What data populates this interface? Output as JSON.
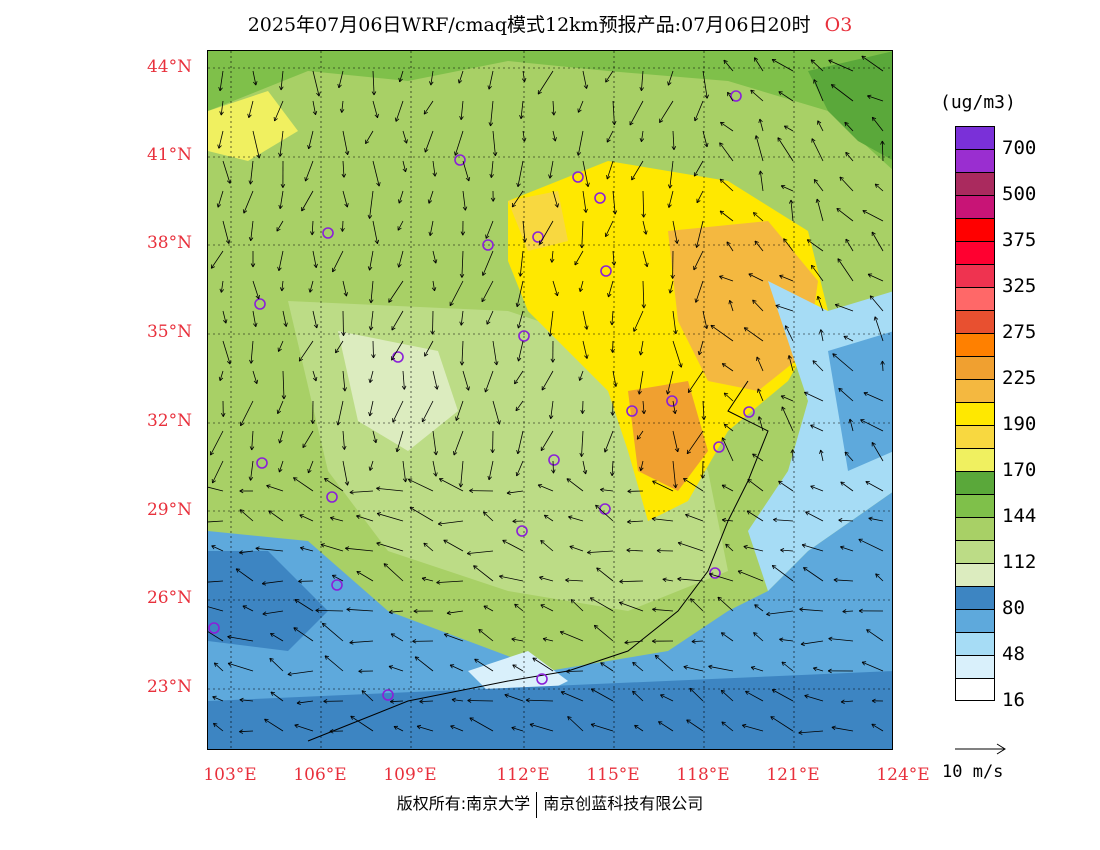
{
  "title": "2025年07月06日WRF/cmaq模式12km预报产品:07月06日20时",
  "species": "O3",
  "latitude_labels": [
    "44°N",
    "41°N",
    "38°N",
    "35°N",
    "32°N",
    "29°N",
    "26°N",
    "23°N"
  ],
  "longitude_labels": [
    "103°E",
    "106°E",
    "109°E",
    "112°E",
    "115°E",
    "118°E",
    "121°E",
    "124°E"
  ],
  "colorbar": {
    "unit": "(ug/m3)",
    "colors": [
      "#ffffff",
      "#d9f0fb",
      "#a6dcf5",
      "#5ea9dc",
      "#3d85c2",
      "#dcecbf",
      "#bcdc86",
      "#a8d066",
      "#7fc04a",
      "#5aa83a",
      "#f0f060",
      "#f8d840",
      "#ffe800",
      "#f4b840",
      "#f0a030",
      "#ff8000",
      "#e85030",
      "#ff6868",
      "#ef3350",
      "#ff0030",
      "#ff0000",
      "#c81476",
      "#aa2a5e",
      "#9a2ed0",
      "#7a30d8"
    ],
    "tick_labels": [
      "16",
      "48",
      "80",
      "112",
      "144",
      "170",
      "190",
      "225",
      "275",
      "325",
      "375",
      "500",
      "700"
    ]
  },
  "wind_reference": "10 m/s",
  "footer": {
    "left": "版权所有:南京大学",
    "right": "南京创蓝科技有限公司"
  }
}
